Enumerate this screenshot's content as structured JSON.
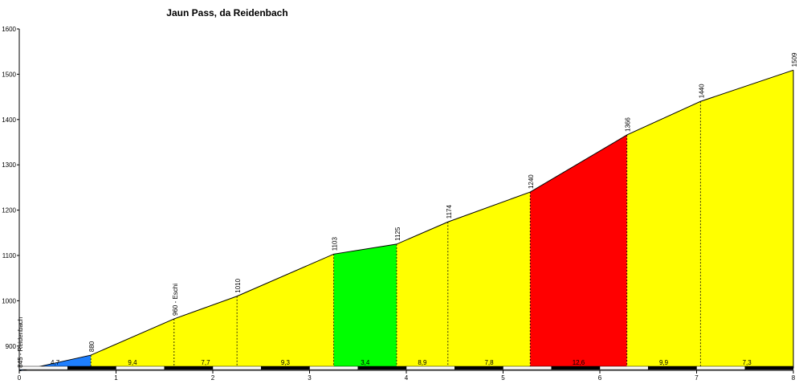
{
  "chart_data": {
    "type": "area",
    "title": "Jaun Pass, da Reidenbach",
    "xlim": [
      0,
      8
    ],
    "ylim": [
      850,
      1600
    ],
    "xticks": [
      "0",
      "1",
      "2",
      "3",
      "4",
      "5",
      "6",
      "7",
      "8"
    ],
    "yticks": [
      "900",
      "1000",
      "1100",
      "1200",
      "1300",
      "1400",
      "1500",
      "1600"
    ],
    "points": [
      {
        "x": 0.0,
        "y": 845,
        "label": "845 - Reidenbach"
      },
      {
        "x": 0.74,
        "y": 880,
        "label": "880"
      },
      {
        "x": 1.6,
        "y": 960,
        "label": "960 - Eschi"
      },
      {
        "x": 2.25,
        "y": 1010,
        "label": "1010"
      },
      {
        "x": 3.25,
        "y": 1103,
        "label": "1103"
      },
      {
        "x": 3.9,
        "y": 1125,
        "label": "1125"
      },
      {
        "x": 4.43,
        "y": 1174,
        "label": "1174"
      },
      {
        "x": 5.28,
        "y": 1240,
        "label": "1240"
      },
      {
        "x": 6.28,
        "y": 1366,
        "label": "1366"
      },
      {
        "x": 7.04,
        "y": 1440,
        "label": "1440"
      },
      {
        "x": 8.0,
        "y": 1509,
        "label": "1509"
      }
    ],
    "segments": [
      {
        "gradient": "4,7",
        "color": "#1e7fff"
      },
      {
        "gradient": "9,4",
        "color": "#ffff00"
      },
      {
        "gradient": "7,7",
        "color": "#ffff00"
      },
      {
        "gradient": "9,3",
        "color": "#ffff00"
      },
      {
        "gradient": "3,4",
        "color": "#00ff00"
      },
      {
        "gradient": "8,9",
        "color": "#ffff00"
      },
      {
        "gradient": "7,8",
        "color": "#ffff00"
      },
      {
        "gradient": "12,6",
        "color": "#ff0000"
      },
      {
        "gradient": "9,9",
        "color": "#ffff00"
      },
      {
        "gradient": "7,3",
        "color": "#ffff00"
      }
    ]
  }
}
